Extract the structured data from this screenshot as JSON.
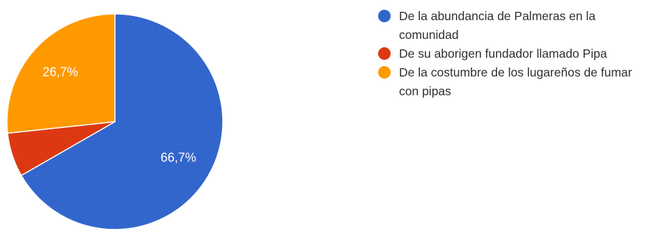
{
  "chart_data": {
    "type": "pie",
    "slices": [
      {
        "label": "De la abundancia de Palmeras en la comunidad",
        "value": 66.7,
        "display": "66,7%",
        "color": "#3366cc"
      },
      {
        "label": "De su aborigen fundador llamado Pipa",
        "value": 6.6,
        "display": "",
        "color": "#dc3912"
      },
      {
        "label": "De la costumbre de los lugareños de fumar con pipas",
        "value": 26.7,
        "display": "26,7%",
        "color": "#ff9900"
      }
    ],
    "legend_position": "right",
    "start_angle_deg": 90,
    "direction": "clockwise"
  }
}
